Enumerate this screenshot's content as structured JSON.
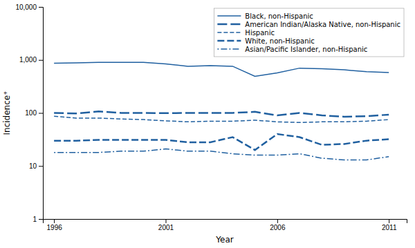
{
  "chart_data": {
    "type": "line",
    "x": [
      1996,
      1997,
      1998,
      1999,
      2000,
      2001,
      2002,
      2003,
      2004,
      2005,
      2006,
      2007,
      2008,
      2009,
      2010,
      2011
    ],
    "xlabel": "Year",
    "ylabel": "Incidence⁺",
    "xlim": [
      1995.5,
      2011.8
    ],
    "xticks": [
      1996,
      2001,
      2006,
      2011
    ],
    "ylim": [
      1,
      10000
    ],
    "yticks": [
      1,
      10,
      100,
      {
        "value": 1000,
        "label": "1,000"
      },
      {
        "value": 10000,
        "label": "10,000"
      }
    ],
    "log": "y",
    "grid": false,
    "legend": "upper right",
    "color": "#2060a0",
    "series": [
      {
        "name": "Black, non-Hispanic",
        "line_style": "solid",
        "values": [
          870,
          880,
          900,
          900,
          900,
          840,
          760,
          780,
          760,
          490,
          570,
          700,
          680,
          650,
          600,
          580
        ]
      },
      {
        "name": "American Indian/Alaska Native, non-Hispanic",
        "line_style": "long-dash",
        "values": [
          100,
          98,
          107,
          100,
          100,
          99,
          100,
          100,
          100,
          105,
          90,
          100,
          90,
          85,
          87,
          93
        ]
      },
      {
        "name": "Hispanic",
        "line_style": "dashed",
        "values": [
          87,
          80,
          80,
          77,
          75,
          71,
          68,
          70,
          70,
          73,
          68,
          66,
          68,
          68,
          70,
          75
        ]
      },
      {
        "name": "White, non-Hispanic",
        "line_style": "medium-dash",
        "values": [
          30,
          30,
          31,
          31,
          31,
          31,
          28,
          28,
          35,
          20,
          40,
          35,
          25,
          26,
          30,
          32
        ]
      },
      {
        "name": "Asian/Pacific Islander, non-Hispanic",
        "line_style": "dash-dot",
        "values": [
          18,
          18,
          18,
          19,
          19,
          21,
          19,
          19,
          17,
          16,
          16,
          17,
          14,
          13,
          13,
          15
        ]
      }
    ]
  }
}
